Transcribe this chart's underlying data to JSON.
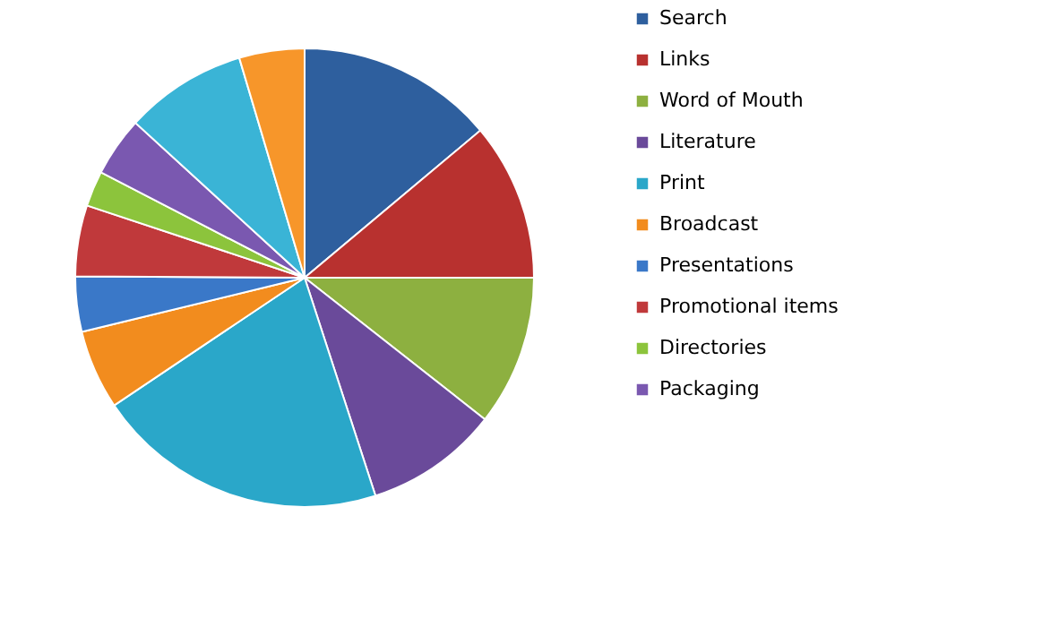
{
  "chart_data": {
    "type": "pie",
    "categories": [
      "Search",
      "Links",
      "Word of Mouth",
      "Literature",
      "Print",
      "Broadcast",
      "Presentations",
      "Promotional items",
      "Directories",
      "Packaging",
      null,
      null
    ],
    "values": [
      13.9,
      11.1,
      10.6,
      9.4,
      20.6,
      5.6,
      3.9,
      5.0,
      2.5,
      4.2,
      8.6,
      4.6
    ],
    "colors": [
      "#2e5f9e",
      "#b8312f",
      "#8db040",
      "#6a4a9a",
      "#2aa7c9",
      "#f28c1e",
      "#3a78c8",
      "#c0393b",
      "#8cc43c",
      "#7a58b0",
      "#3ab4d6",
      "#f7962a"
    ],
    "legend": "right"
  }
}
